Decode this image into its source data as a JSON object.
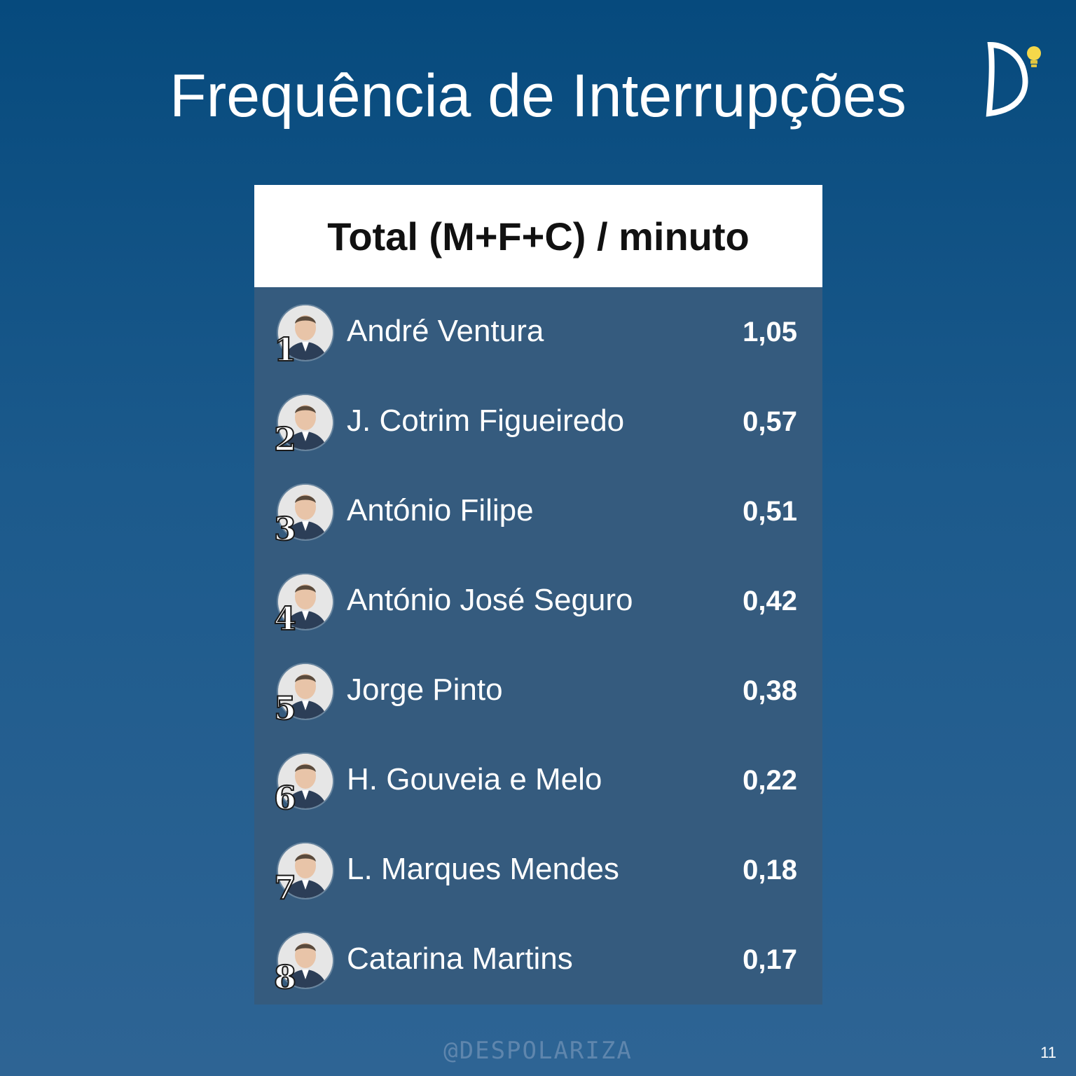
{
  "page": {
    "title": "Frequência de Interrupções",
    "footer_handle": "@DESPOLARIZA",
    "page_number": "11",
    "logo": {
      "letter": "D",
      "icon": "lightbulb-icon",
      "colors": {
        "letter": "#ffffff",
        "bulb": "#f5d84a"
      }
    }
  },
  "colors": {
    "background_top": "#064a7d",
    "background_bottom": "#2e6494",
    "card_body": "#355b7e",
    "card_header": "#ffffff"
  },
  "chart_data": {
    "type": "table",
    "title": "Frequência de Interrupções",
    "header": "Total (M+F+C) / minuto",
    "rows": [
      {
        "rank": "1",
        "name": "André Ventura",
        "value_label": "1,05",
        "value": 1.05,
        "avatar": "portrait-icon"
      },
      {
        "rank": "2",
        "name": "J. Cotrim Figueiredo",
        "value_label": "0,57",
        "value": 0.57,
        "avatar": "portrait-icon"
      },
      {
        "rank": "3",
        "name": "António Filipe",
        "value_label": "0,51",
        "value": 0.51,
        "avatar": "portrait-icon"
      },
      {
        "rank": "4",
        "name": "António José Seguro",
        "value_label": "0,42",
        "value": 0.42,
        "avatar": "portrait-icon"
      },
      {
        "rank": "5",
        "name": "Jorge Pinto",
        "value_label": "0,38",
        "value": 0.38,
        "avatar": "portrait-icon"
      },
      {
        "rank": "6",
        "name": "H. Gouveia e Melo",
        "value_label": "0,22",
        "value": 0.22,
        "avatar": "portrait-icon"
      },
      {
        "rank": "7",
        "name": "L. Marques Mendes",
        "value_label": "0,18",
        "value": 0.18,
        "avatar": "portrait-icon"
      },
      {
        "rank": "8",
        "name": "Catarina Martins",
        "value_label": "0,17",
        "value": 0.17,
        "avatar": "portrait-icon"
      }
    ]
  }
}
